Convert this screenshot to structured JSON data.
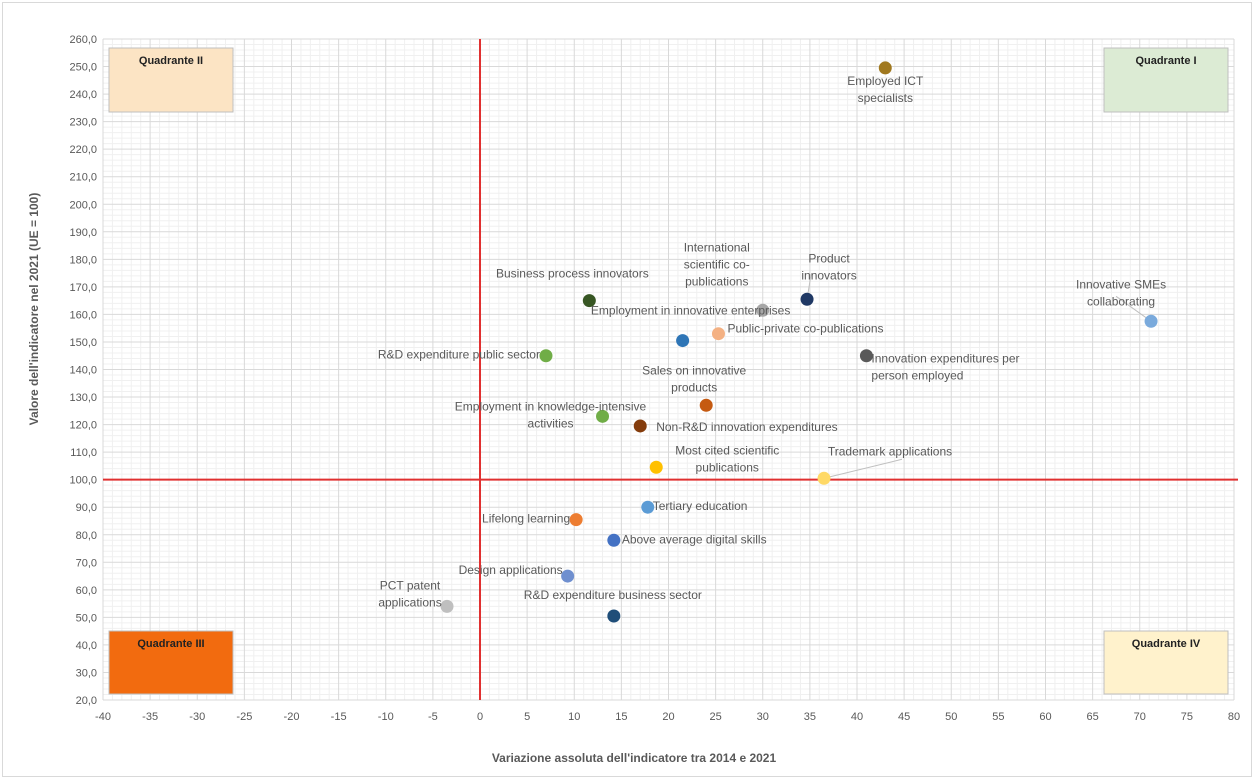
{
  "chart_data": {
    "type": "scatter",
    "title": "",
    "xlabel": "Variazione assoluta dell'indicatore tra 2014 e 2021",
    "ylabel": "Valore dell'indicatore nel 2021 (UE = 100)",
    "xlim": [
      -40,
      80
    ],
    "ylim": [
      20,
      260
    ],
    "xticks": [
      -40,
      -35,
      -30,
      -25,
      -20,
      -15,
      -10,
      -5,
      0,
      5,
      10,
      15,
      20,
      25,
      30,
      35,
      40,
      45,
      50,
      55,
      60,
      65,
      70,
      75,
      80
    ],
    "yticks": [
      "20,0",
      "30,0",
      "40,0",
      "50,0",
      "60,0",
      "70,0",
      "80,0",
      "90,0",
      "100,0",
      "110,0",
      "120,0",
      "130,0",
      "140,0",
      "150,0",
      "160,0",
      "170,0",
      "180,0",
      "190,0",
      "200,0",
      "210,0",
      "220,0",
      "230,0",
      "240,0",
      "250,0",
      "260,0"
    ],
    "grid": true,
    "reference_lines": {
      "x": 0,
      "y": 100,
      "color": "#e03030"
    },
    "quadrants": [
      {
        "label": "Quadrante  II",
        "fill": "#fce4c4",
        "text_color": "#222222"
      },
      {
        "label": "Quadrante  I",
        "fill": "#dcebd4",
        "text_color": "#222222"
      },
      {
        "label": "Quadrante  III",
        "fill": "#f26b0f",
        "text_color": "#222222"
      },
      {
        "label": "Quadrante  IV",
        "fill": "#fff2cc",
        "text_color": "#222222"
      }
    ],
    "points": [
      {
        "label": [
          "Employed ICT",
          "specialists"
        ],
        "x": 43.0,
        "y": 249.5,
        "color": "#a0781e"
      },
      {
        "label": [
          "Innovative SMEs",
          "collaborating"
        ],
        "x": 71.2,
        "y": 157.5,
        "color": "#7aaadc"
      },
      {
        "label": [
          "Product",
          "innovators"
        ],
        "x": 34.7,
        "y": 165.5,
        "color": "#1f3864"
      },
      {
        "label": [
          "International",
          "scientific co-",
          "publications"
        ],
        "x": 30.0,
        "y": 161.5,
        "color": "#a6a6a6"
      },
      {
        "label": [
          "Business process innovators"
        ],
        "x": 11.6,
        "y": 165.0,
        "color": "#375623"
      },
      {
        "label": [
          "Employment in innovative enterprises"
        ],
        "x": 21.5,
        "y": 150.5,
        "color": "#2e75b6"
      },
      {
        "label": [
          "Public-private co-publications"
        ],
        "x": 25.3,
        "y": 153.0,
        "color": "#f4b183"
      },
      {
        "label": [
          "R&D expenditure public sector"
        ],
        "x": 7.0,
        "y": 145.0,
        "color": "#70ad47"
      },
      {
        "label": [
          "Innovation expenditures per",
          "person employed"
        ],
        "x": 41.0,
        "y": 145.0,
        "color": "#595959"
      },
      {
        "label": [
          "Sales on innovative",
          "products"
        ],
        "x": 24.0,
        "y": 127.0,
        "color": "#c55a11"
      },
      {
        "label": [
          "Employment in knowledge-intensive",
          "activities"
        ],
        "x": 13.0,
        "y": 123.0,
        "color": "#70ad47"
      },
      {
        "label": [
          "Non-R&D innovation expenditures"
        ],
        "x": 17.0,
        "y": 119.5,
        "color": "#843c0c"
      },
      {
        "label": [
          "Most cited scientific",
          "publications"
        ],
        "x": 18.7,
        "y": 104.5,
        "color": "#ffc000"
      },
      {
        "label": [
          "Trademark applications"
        ],
        "x": 36.5,
        "y": 100.5,
        "color": "#ffd966"
      },
      {
        "label": [
          "Tertiary education"
        ],
        "x": 17.8,
        "y": 90.0,
        "color": "#5b9bd5"
      },
      {
        "label": [
          "Lifelong learning"
        ],
        "x": 10.2,
        "y": 85.5,
        "color": "#ed7d31"
      },
      {
        "label": [
          "Above average digital skills"
        ],
        "x": 14.2,
        "y": 78.0,
        "color": "#4472c4"
      },
      {
        "label": [
          "Design applications"
        ],
        "x": 9.3,
        "y": 65.0,
        "color": "#6f8fcf"
      },
      {
        "label": [
          "PCT patent",
          "applications"
        ],
        "x": -3.5,
        "y": 54.0,
        "color": "#bfbfbf"
      },
      {
        "label": [
          "R&D expenditure business sector"
        ],
        "x": 14.2,
        "y": 50.5,
        "color": "#1f4e79"
      }
    ]
  }
}
